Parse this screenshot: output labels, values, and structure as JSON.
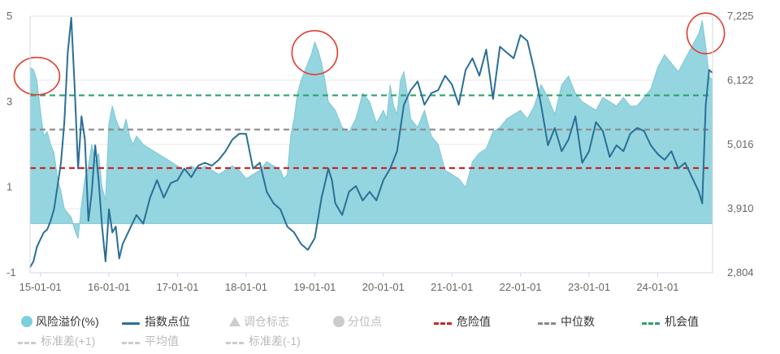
{
  "chart_data": {
    "type": "area",
    "left_axis": {
      "ticks": [
        "5",
        "3",
        "1",
        "-1"
      ],
      "values": [
        5,
        3,
        1,
        -1
      ],
      "ylim": [
        -1,
        5
      ]
    },
    "right_axis": {
      "ticks": [
        "7,225",
        "6,122",
        "5,016",
        "3,910",
        "2,804"
      ],
      "values": [
        7225,
        6122,
        5016,
        3910,
        2804
      ],
      "ylim": [
        2804,
        7225
      ]
    },
    "x_ticks": [
      "15-01-01",
      "16-01-01",
      "17-01-01",
      "18-01-01",
      "19-01-01",
      "20-01-01",
      "21-01-01",
      "22-01-01",
      "23-01-01",
      "24-01-01"
    ],
    "x_tick_years": [
      2015,
      2016,
      2017,
      2018,
      2019,
      2020,
      2021,
      2022,
      2023,
      2024
    ],
    "x_range": [
      2014.85,
      2024.8
    ],
    "risk_premium_baseline": 0.15,
    "reference_lines": {
      "danger": 1.45,
      "median": 2.35,
      "opportunity": 3.15
    },
    "risk_premium": {
      "x": [
        2014.85,
        2014.9,
        2014.95,
        2015.0,
        2015.05,
        2015.1,
        2015.15,
        2015.2,
        2015.25,
        2015.3,
        2015.35,
        2015.4,
        2015.45,
        2015.5,
        2015.55,
        2015.6,
        2015.65,
        2015.7,
        2015.75,
        2015.8,
        2015.85,
        2015.9,
        2015.95,
        2016.0,
        2016.05,
        2016.1,
        2016.15,
        2016.2,
        2016.25,
        2016.3,
        2016.35,
        2016.4,
        2016.45,
        2016.5,
        2016.6,
        2016.7,
        2016.8,
        2016.9,
        2017.0,
        2017.1,
        2017.2,
        2017.3,
        2017.4,
        2017.5,
        2017.6,
        2017.7,
        2017.8,
        2017.9,
        2018.0,
        2018.1,
        2018.2,
        2018.3,
        2018.4,
        2018.5,
        2018.55,
        2018.6,
        2018.65,
        2018.7,
        2018.75,
        2018.8,
        2018.85,
        2018.9,
        2018.95,
        2019.0,
        2019.05,
        2019.1,
        2019.15,
        2019.2,
        2019.3,
        2019.4,
        2019.5,
        2019.6,
        2019.7,
        2019.8,
        2019.9,
        2020.0,
        2020.05,
        2020.1,
        2020.15,
        2020.2,
        2020.25,
        2020.3,
        2020.35,
        2020.4,
        2020.5,
        2020.6,
        2020.7,
        2020.8,
        2020.9,
        2021.0,
        2021.1,
        2021.2,
        2021.3,
        2021.4,
        2021.5,
        2021.6,
        2021.7,
        2021.8,
        2021.9,
        2022.0,
        2022.1,
        2022.2,
        2022.3,
        2022.4,
        2022.5,
        2022.6,
        2022.7,
        2022.8,
        2022.9,
        2023.0,
        2023.1,
        2023.2,
        2023.3,
        2023.4,
        2023.5,
        2023.6,
        2023.7,
        2023.8,
        2023.9,
        2024.0,
        2024.1,
        2024.2,
        2024.3,
        2024.4,
        2024.5,
        2024.6,
        2024.65,
        2024.7,
        2024.75,
        2024.8
      ],
      "values": [
        3.8,
        3.75,
        3.5,
        2.8,
        2.2,
        2.3,
        2.0,
        1.8,
        1.2,
        0.9,
        0.5,
        0.4,
        0.3,
        0.0,
        -0.2,
        0.6,
        1.2,
        1.5,
        2.0,
        1.6,
        1.8,
        1.0,
        0.7,
        2.5,
        2.9,
        2.6,
        2.4,
        2.3,
        2.6,
        2.2,
        2.0,
        2.2,
        2.1,
        2.0,
        1.9,
        1.8,
        1.7,
        1.6,
        1.5,
        1.4,
        1.5,
        1.4,
        1.5,
        1.4,
        1.3,
        1.4,
        1.5,
        1.4,
        1.2,
        1.3,
        1.4,
        1.6,
        1.5,
        1.4,
        1.2,
        1.3,
        2.2,
        2.6,
        3.2,
        3.5,
        3.7,
        3.9,
        4.1,
        4.4,
        4.2,
        3.9,
        3.5,
        3.0,
        2.8,
        2.4,
        2.3,
        2.6,
        3.2,
        3.0,
        2.5,
        2.8,
        2.6,
        3.4,
        2.9,
        2.7,
        3.5,
        3.7,
        3.2,
        2.6,
        2.4,
        2.8,
        2.2,
        2.0,
        1.4,
        1.3,
        1.2,
        1.0,
        1.6,
        1.8,
        1.9,
        2.3,
        2.4,
        2.6,
        2.7,
        2.8,
        2.6,
        2.9,
        3.4,
        3.1,
        2.7,
        3.4,
        3.6,
        3.2,
        3.0,
        2.9,
        2.8,
        3.1,
        3.0,
        2.9,
        3.1,
        2.9,
        2.9,
        3.1,
        3.3,
        3.8,
        4.1,
        3.9,
        3.7,
        4.0,
        4.3,
        4.6,
        4.9,
        4.3,
        3.6,
        3.5
      ]
    },
    "index_points": {
      "x": [
        2014.85,
        2014.9,
        2014.95,
        2015.0,
        2015.05,
        2015.1,
        2015.15,
        2015.2,
        2015.25,
        2015.3,
        2015.35,
        2015.4,
        2015.45,
        2015.5,
        2015.55,
        2015.6,
        2015.65,
        2015.7,
        2015.75,
        2015.8,
        2015.85,
        2015.9,
        2015.95,
        2016.0,
        2016.05,
        2016.1,
        2016.15,
        2016.2,
        2016.3,
        2016.4,
        2016.5,
        2016.6,
        2016.7,
        2016.8,
        2016.9,
        2017.0,
        2017.1,
        2017.2,
        2017.3,
        2017.4,
        2017.5,
        2017.6,
        2017.7,
        2017.8,
        2017.9,
        2018.0,
        2018.1,
        2018.2,
        2018.3,
        2018.4,
        2018.5,
        2018.6,
        2018.7,
        2018.8,
        2018.9,
        2019.0,
        2019.1,
        2019.2,
        2019.25,
        2019.3,
        2019.4,
        2019.5,
        2019.6,
        2019.7,
        2019.8,
        2019.9,
        2020.0,
        2020.1,
        2020.2,
        2020.3,
        2020.4,
        2020.5,
        2020.6,
        2020.7,
        2020.8,
        2020.9,
        2021.0,
        2021.1,
        2021.2,
        2021.3,
        2021.4,
        2021.5,
        2021.6,
        2021.7,
        2021.8,
        2021.9,
        2022.0,
        2022.1,
        2022.2,
        2022.3,
        2022.4,
        2022.5,
        2022.6,
        2022.7,
        2022.8,
        2022.9,
        2023.0,
        2023.1,
        2023.2,
        2023.3,
        2023.4,
        2023.5,
        2023.6,
        2023.7,
        2023.8,
        2023.9,
        2024.0,
        2024.1,
        2024.2,
        2024.3,
        2024.4,
        2024.5,
        2024.6,
        2024.65,
        2024.7,
        2024.75,
        2024.8
      ],
      "values": [
        2900,
        3000,
        3250,
        3380,
        3500,
        3550,
        3700,
        3900,
        4300,
        4700,
        5400,
        6600,
        7200,
        6000,
        4600,
        5500,
        5100,
        3700,
        4200,
        5000,
        4400,
        3600,
        3000,
        3900,
        3500,
        3600,
        3050,
        3300,
        3550,
        3800,
        3650,
        4100,
        4400,
        4100,
        4350,
        4400,
        4600,
        4450,
        4650,
        4700,
        4650,
        4750,
        4900,
        5100,
        5200,
        5200,
        4600,
        4700,
        4200,
        4000,
        3900,
        3600,
        3500,
        3300,
        3200,
        3400,
        4100,
        4600,
        4400,
        4000,
        3800,
        4200,
        4300,
        4050,
        4200,
        4050,
        4400,
        4600,
        4900,
        5700,
        5950,
        6100,
        5700,
        5900,
        5950,
        6200,
        6050,
        5700,
        6300,
        6500,
        6200,
        6650,
        5800,
        6700,
        6600,
        6500,
        6900,
        6800,
        6300,
        5700,
        5000,
        5300,
        4900,
        5100,
        5500,
        4700,
        4900,
        5400,
        5250,
        4800,
        5000,
        4900,
        5200,
        5300,
        5250,
        5000,
        4850,
        4750,
        4900,
        4600,
        4700,
        4450,
        4200,
        4000,
        5700,
        6300,
        6250
      ]
    }
  },
  "legend": {
    "row1": [
      {
        "name": "legend-risk-premium",
        "label": "风险溢价(%)",
        "symbol": "dot",
        "color": "#7ccfdc",
        "active": true
      },
      {
        "name": "legend-index-points",
        "label": "指数点位",
        "symbol": "line",
        "color": "#2a6f97",
        "active": true
      },
      {
        "name": "legend-rebalance-flag",
        "label": "调仓标志",
        "symbol": "triangle",
        "color": "#cccccc",
        "active": false
      },
      {
        "name": "legend-quantile-points",
        "label": "分位点",
        "symbol": "dot",
        "color": "#cccccc",
        "active": false
      },
      {
        "name": "legend-danger-value",
        "label": "危险值",
        "symbol": "dash",
        "color": "#c62828",
        "active": true
      },
      {
        "name": "legend-median",
        "label": "中位数",
        "symbol": "dash",
        "color": "#888888",
        "active": true
      },
      {
        "name": "legend-opportunity-value",
        "label": "机会值",
        "symbol": "dash",
        "color": "#2ba36b",
        "active": true
      }
    ],
    "row2": [
      {
        "name": "legend-std-plus1",
        "label": "标准差(+1)",
        "symbol": "dash",
        "color": "#cccccc",
        "active": false
      },
      {
        "name": "legend-average",
        "label": "平均值",
        "symbol": "dash",
        "color": "#cccccc",
        "active": false
      },
      {
        "name": "legend-std-minus1",
        "label": "标准差(-1)",
        "symbol": "dash",
        "color": "#cccccc",
        "active": false
      }
    ]
  },
  "colors": {
    "area_fill": "#8fd3dd",
    "index_line": "#2a6f97",
    "danger": "#c62828",
    "median": "#8a8a8a",
    "opportunity": "#2ba36b",
    "highlight_circle": "#e23b2e",
    "grid": "#e6e6e6"
  }
}
